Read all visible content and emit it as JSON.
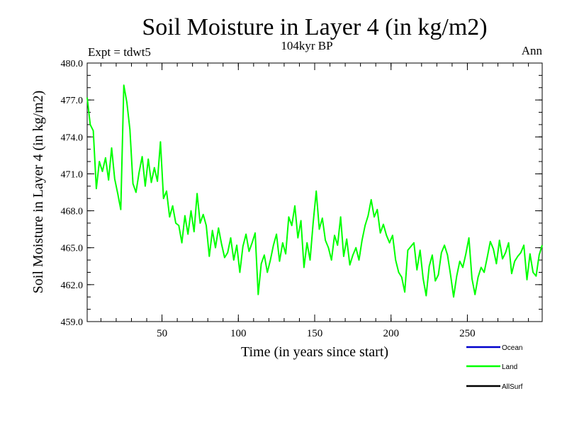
{
  "chart_data": {
    "type": "line",
    "title": "Soil Moisture in Layer 4 (in kg/m2)",
    "subtitle": "104kyr BP",
    "left_note": "Expt = tdwt5",
    "right_note": "Ann",
    "xlabel": "Time (in years since start)",
    "ylabel": "Soil Moisture in Layer 4 (in kg/m2)",
    "xlim": [
      1,
      299
    ],
    "ylim": [
      459.0,
      480.0
    ],
    "x_ticks": [
      50,
      100,
      150,
      200,
      250
    ],
    "x_tick_labels": [
      "50",
      "100",
      "150",
      "200",
      "250"
    ],
    "y_ticks": [
      459,
      462,
      465,
      468,
      471,
      474,
      477,
      480
    ],
    "y_tick_labels": [
      "459.0",
      "462.0",
      "465.0",
      "468.0",
      "471.0",
      "474.0",
      "477.0",
      "480.0"
    ],
    "legend_position": "bottom-right",
    "legend": [
      {
        "name": "Ocean",
        "color": "#0000cc"
      },
      {
        "name": "Land",
        "color": "#00ff00"
      },
      {
        "name": "AllSurf",
        "color": "#000000"
      }
    ],
    "series": [
      {
        "name": "Land",
        "color": "#00ff00",
        "x": [
          1,
          3,
          5,
          7,
          9,
          11,
          13,
          15,
          17,
          19,
          21,
          23,
          25,
          27,
          29,
          31,
          33,
          35,
          37,
          39,
          41,
          43,
          45,
          47,
          49,
          51,
          53,
          55,
          57,
          59,
          61,
          63,
          65,
          67,
          69,
          71,
          73,
          75,
          77,
          79,
          81,
          83,
          85,
          87,
          89,
          91,
          93,
          95,
          97,
          99,
          101,
          103,
          105,
          107,
          109,
          111,
          113,
          115,
          117,
          119,
          121,
          123,
          125,
          127,
          129,
          131,
          133,
          135,
          137,
          139,
          141,
          143,
          145,
          147,
          149,
          151,
          153,
          155,
          157,
          159,
          161,
          163,
          165,
          167,
          169,
          171,
          173,
          175,
          177,
          179,
          181,
          183,
          185,
          187,
          189,
          191,
          193,
          195,
          197,
          199,
          201,
          203,
          205,
          207,
          209,
          211,
          213,
          215,
          217,
          219,
          221,
          223,
          225,
          227,
          229,
          231,
          233,
          235,
          237,
          239,
          241,
          243,
          245,
          247,
          249,
          251,
          253,
          255,
          257,
          259,
          261,
          263,
          265,
          267,
          269,
          271,
          273,
          275,
          277,
          279,
          281,
          283,
          285,
          287,
          289,
          291,
          293,
          295,
          297,
          299
        ],
        "y": [
          477.2,
          475.0,
          474.5,
          469.8,
          472.0,
          471.2,
          472.3,
          470.5,
          473.1,
          470.6,
          469.4,
          468.1,
          478.2,
          476.8,
          474.6,
          470.2,
          469.5,
          471.1,
          472.4,
          470.0,
          472.2,
          470.3,
          471.5,
          470.4,
          473.6,
          469.0,
          469.6,
          467.5,
          468.4,
          467.0,
          466.8,
          465.4,
          467.6,
          466.1,
          468.0,
          466.3,
          469.4,
          467.0,
          467.7,
          466.8,
          464.3,
          466.4,
          465.0,
          466.6,
          465.3,
          464.2,
          464.6,
          465.8,
          464.0,
          465.2,
          463.0,
          465.1,
          466.1,
          464.7,
          465.4,
          466.2,
          461.2,
          463.7,
          464.4,
          463.0,
          464.0,
          465.2,
          466.1,
          463.9,
          465.4,
          464.5,
          467.5,
          466.8,
          468.4,
          465.8,
          467.2,
          463.4,
          465.4,
          464.0,
          467.0,
          469.6,
          466.5,
          467.4,
          465.6,
          465.0,
          464.0,
          466.0,
          465.2,
          467.5,
          464.3,
          465.7,
          463.6,
          464.4,
          465.0,
          464.0,
          465.6,
          466.8,
          467.6,
          468.9,
          467.5,
          468.1,
          466.2,
          466.9,
          466.0,
          465.4,
          466.0,
          464.0,
          463.0,
          462.6,
          461.4,
          464.8,
          465.1,
          465.4,
          463.2,
          464.8,
          462.5,
          461.1,
          463.5,
          464.4,
          462.3,
          462.8,
          464.6,
          465.2,
          464.4,
          462.8,
          461.0,
          462.7,
          463.9,
          463.4,
          464.5,
          465.8,
          462.5,
          461.2,
          462.6,
          463.4,
          463.0,
          464.2,
          465.5,
          464.9,
          463.7,
          465.6,
          464.1,
          464.6,
          465.4,
          462.9,
          463.9,
          464.3,
          464.6,
          465.2,
          462.4,
          464.5,
          463.0,
          462.7,
          464.4,
          465.2
        ]
      }
    ]
  }
}
